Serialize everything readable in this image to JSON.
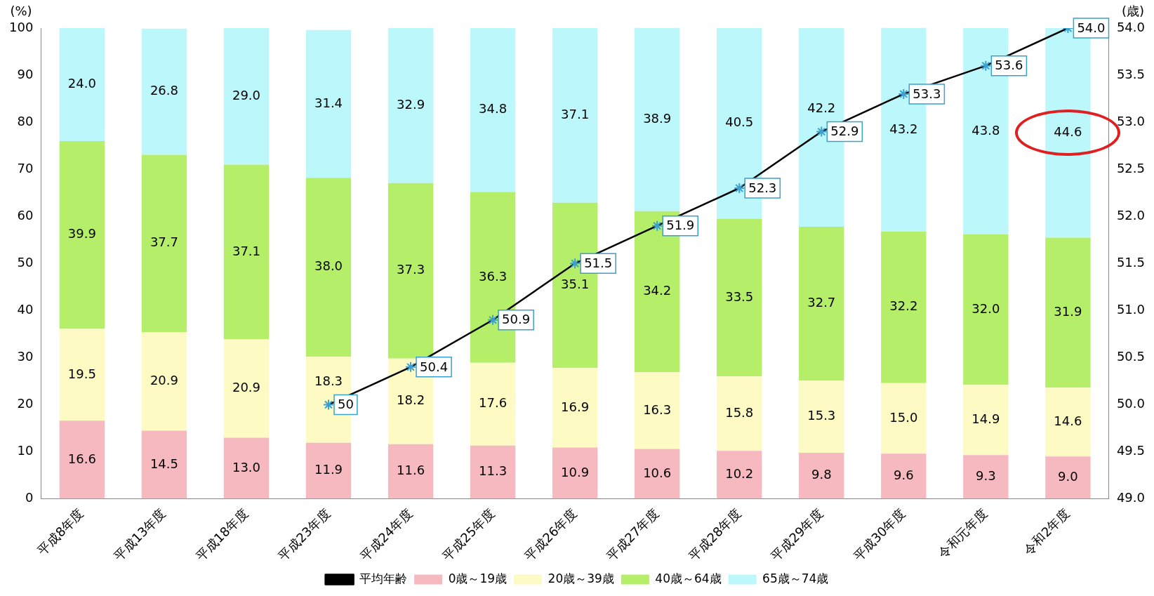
{
  "chart_data": {
    "type": "bar",
    "stacked": true,
    "ylabel": "(%)",
    "y2label": "(歳)",
    "categories": [
      "平成8年度",
      "平成13年度",
      "平成18年度",
      "平成23年度",
      "平成24年度",
      "平成25年度",
      "平成26年度",
      "平成27年度",
      "平成28年度",
      "平成29年度",
      "平成30年度",
      "令和元年度",
      "令和2年度"
    ],
    "series": [
      {
        "name": "0歳～19歳",
        "color": "#f6b9c0",
        "values": [
          16.6,
          14.5,
          13.0,
          11.9,
          11.6,
          11.3,
          10.9,
          10.6,
          10.2,
          9.8,
          9.6,
          9.3,
          9.0
        ],
        "value_labels": [
          "16.6",
          "14.5",
          "13.0",
          "11.9",
          "11.6",
          "11.3",
          "10.9",
          "10.6",
          "10.2",
          "9.8",
          "9.6",
          "9.3",
          "9.0"
        ]
      },
      {
        "name": "20歳～39歳",
        "color": "#fdfbc3",
        "values": [
          19.5,
          20.9,
          20.9,
          18.3,
          18.2,
          17.6,
          16.9,
          16.3,
          15.8,
          15.3,
          15.0,
          14.9,
          14.6
        ],
        "value_labels": [
          "19.5",
          "20.9",
          "20.9",
          "18.3",
          "18.2",
          "17.6",
          "16.9",
          "16.3",
          "15.8",
          "15.3",
          "15.0",
          "14.9",
          "14.6"
        ]
      },
      {
        "name": "40歳～64歳",
        "color": "#b5ef6a",
        "values": [
          39.9,
          37.7,
          37.1,
          38.0,
          37.3,
          36.3,
          35.1,
          34.2,
          33.5,
          32.7,
          32.2,
          32.0,
          31.9
        ],
        "value_labels": [
          "39.9",
          "37.7",
          "37.1",
          "38.0",
          "37.3",
          "36.3",
          "35.1",
          "34.2",
          "33.5",
          "32.7",
          "32.2",
          "32.0",
          "31.9"
        ]
      },
      {
        "name": "65歳～74歳",
        "color": "#bcf7fb",
        "values": [
          24.0,
          26.8,
          29.0,
          31.4,
          32.9,
          34.8,
          37.1,
          38.9,
          40.5,
          42.2,
          43.2,
          43.8,
          44.6
        ],
        "value_labels": [
          "24.0",
          "26.8",
          "29.0",
          "31.4",
          "32.9",
          "34.8",
          "37.1",
          "38.9",
          "40.5",
          "42.2",
          "43.2",
          "43.8",
          "44.6"
        ]
      },
      {
        "name": "平均年齢",
        "type": "line",
        "axis": "y2",
        "color": "#000000",
        "values": [
          null,
          null,
          null,
          50,
          50.4,
          50.9,
          51.5,
          51.9,
          52.3,
          52.9,
          53.3,
          53.6,
          54.0
        ],
        "value_labels": [
          null,
          null,
          null,
          "50",
          "50.4",
          "50.9",
          "51.5",
          "51.9",
          "52.3",
          "52.9",
          "53.3",
          "53.6",
          "54.0"
        ]
      }
    ],
    "ylim": [
      0,
      100
    ],
    "yticks": [
      0,
      10,
      20,
      30,
      40,
      50,
      60,
      70,
      80,
      90,
      100
    ],
    "y2lim": [
      49,
      54
    ],
    "y2ticks": [
      {
        "value": 49,
        "label": "49.0"
      },
      {
        "value": 49.5,
        "label": "49.5"
      },
      {
        "value": 50,
        "label": "50.0"
      },
      {
        "value": 50.5,
        "label": "50.5"
      },
      {
        "value": 51,
        "label": "51.0"
      },
      {
        "value": 51.5,
        "label": "51.5"
      },
      {
        "value": 52,
        "label": "52.0"
      },
      {
        "value": 52.5,
        "label": "52.5"
      },
      {
        "value": 53,
        "label": "53.0"
      },
      {
        "value": 53.5,
        "label": "53.5"
      },
      {
        "value": 54,
        "label": "54.0"
      }
    ],
    "grid": false,
    "legend": "bottom",
    "marker": "cross"
  }
}
